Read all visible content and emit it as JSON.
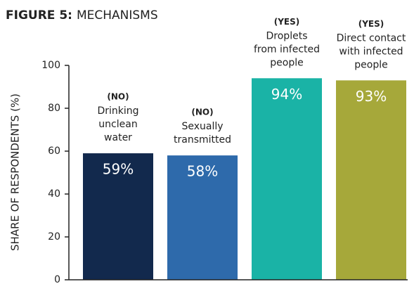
{
  "chart_data": {
    "type": "bar",
    "figure_label": "FIGURE 5:",
    "title": "MECHANISMS",
    "y_label": "SHARE OF RESPONDENTS (%)",
    "categories": [
      "Drinking\nunclean\nwater",
      "Sexually\ntransmitted",
      "Droplets\nfrom infected\npeople",
      "Direct contact\nwith infected\npeople"
    ],
    "category_tags": [
      "(NO)",
      "(NO)",
      "(YES)",
      "(YES)"
    ],
    "values": [
      59,
      58,
      94,
      93
    ],
    "value_labels": [
      "59%",
      "58%",
      "94%",
      "93%"
    ],
    "colors": [
      "#12294d",
      "#2e6aab",
      "#1ab3a6",
      "#a6a83a"
    ],
    "ylim": [
      0,
      100
    ],
    "yticks": [
      0,
      20,
      40,
      60,
      80,
      100
    ],
    "grid": false
  }
}
